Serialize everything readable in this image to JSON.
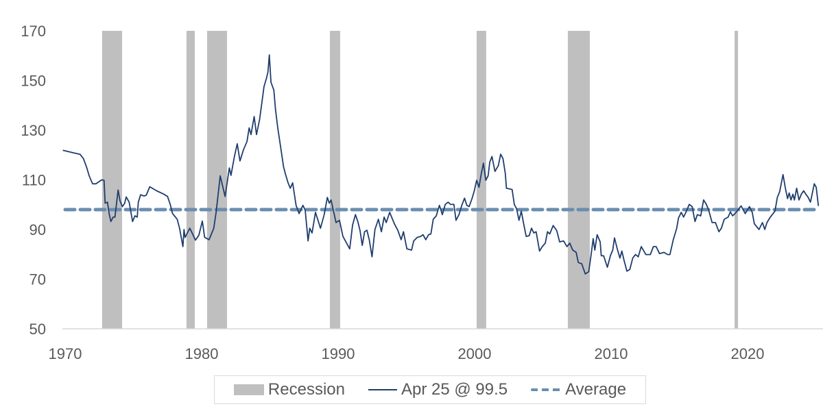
{
  "chart_data": {
    "type": "line",
    "title": "",
    "xlabel": "",
    "ylabel": "",
    "xlim": [
      1969.8,
      2025.3
    ],
    "ylim": [
      50,
      170
    ],
    "x_ticks": [
      "1970",
      "1980",
      "1990",
      "2000",
      "2010",
      "2020"
    ],
    "y_ticks": [
      "50",
      "70",
      "90",
      "110",
      "130",
      "150",
      "170"
    ],
    "grid": false,
    "legend_position": "bottom",
    "colors": {
      "series": "#1f3d6d",
      "average": "#6a8db0",
      "recession": "#bfbfbf",
      "text": "#595959"
    },
    "recessions": [
      [
        1972.71,
        1974.17
      ],
      [
        1978.89,
        1979.5
      ],
      [
        1980.4,
        1981.86
      ],
      [
        1989.4,
        1990.15
      ],
      [
        2000.15,
        2000.85
      ],
      [
        2006.83,
        2008.44
      ],
      [
        2019.05,
        2019.3
      ]
    ],
    "average": 98.0,
    "series": [
      {
        "name": "Apr 25 @ 99.5",
        "points": [
          [
            1969.83,
            121.9
          ],
          [
            1970.67,
            120.8
          ],
          [
            1971.09,
            120.3
          ],
          [
            1971.34,
            118.5
          ],
          [
            1971.59,
            114.8
          ],
          [
            1971.76,
            111.6
          ],
          [
            1972.01,
            108.4
          ],
          [
            1972.26,
            108.4
          ],
          [
            1972.68,
            110
          ],
          [
            1972.85,
            109.8
          ],
          [
            1972.93,
            100.6
          ],
          [
            1973.1,
            101
          ],
          [
            1973.22,
            96.4
          ],
          [
            1973.35,
            93.2
          ],
          [
            1973.52,
            95
          ],
          [
            1973.65,
            95
          ],
          [
            1973.88,
            105.9
          ],
          [
            1974.02,
            101.5
          ],
          [
            1974.19,
            99.2
          ],
          [
            1974.36,
            100.6
          ],
          [
            1974.47,
            103.1
          ],
          [
            1974.69,
            101
          ],
          [
            1974.94,
            93.2
          ],
          [
            1975.11,
            95.5
          ],
          [
            1975.28,
            95
          ],
          [
            1975.36,
            101
          ],
          [
            1975.53,
            104
          ],
          [
            1975.78,
            103.5
          ],
          [
            1975.94,
            103.8
          ],
          [
            1976.2,
            107.2
          ],
          [
            1976.7,
            105.6
          ],
          [
            1977.2,
            104.3
          ],
          [
            1977.5,
            103.3
          ],
          [
            1977.7,
            100.1
          ],
          [
            1977.87,
            96.4
          ],
          [
            1978.21,
            94.1
          ],
          [
            1978.38,
            90.5
          ],
          [
            1978.63,
            83.1
          ],
          [
            1978.71,
            90
          ],
          [
            1978.79,
            86.8
          ],
          [
            1979.13,
            90.5
          ],
          [
            1979.38,
            87.7
          ],
          [
            1979.55,
            85.7
          ],
          [
            1979.8,
            87.7
          ],
          [
            1980.05,
            93.4
          ],
          [
            1980.22,
            86.8
          ],
          [
            1980.55,
            85.9
          ],
          [
            1980.89,
            90.5
          ],
          [
            1981.06,
            96.9
          ],
          [
            1981.36,
            111.6
          ],
          [
            1981.72,
            103.3
          ],
          [
            1982.03,
            114.8
          ],
          [
            1982.15,
            111.8
          ],
          [
            1982.4,
            119.4
          ],
          [
            1982.61,
            124.5
          ],
          [
            1982.81,
            117.6
          ],
          [
            1983.07,
            122.2
          ],
          [
            1983.32,
            125.4
          ],
          [
            1983.48,
            130.9
          ],
          [
            1983.62,
            128.2
          ],
          [
            1983.85,
            135.5
          ],
          [
            1984.02,
            128.2
          ],
          [
            1984.24,
            134.1
          ],
          [
            1984.41,
            141
          ],
          [
            1984.57,
            147.5
          ],
          [
            1984.74,
            150.7
          ],
          [
            1984.86,
            153.4
          ],
          [
            1984.96,
            160.3
          ],
          [
            1985.08,
            149.3
          ],
          [
            1985.29,
            146.1
          ],
          [
            1985.41,
            138.3
          ],
          [
            1985.58,
            130.9
          ],
          [
            1985.83,
            121.7
          ],
          [
            1986.0,
            115.3
          ],
          [
            1986.13,
            112.5
          ],
          [
            1986.33,
            108.8
          ],
          [
            1986.5,
            106.6
          ],
          [
            1986.67,
            108.8
          ],
          [
            1986.92,
            99.7
          ],
          [
            1987.14,
            96.4
          ],
          [
            1987.42,
            99.7
          ],
          [
            1987.59,
            97.8
          ],
          [
            1987.8,
            85.4
          ],
          [
            1987.92,
            90.5
          ],
          [
            1988.09,
            88.6
          ],
          [
            1988.34,
            96.9
          ],
          [
            1988.71,
            90.5
          ],
          [
            1988.98,
            96
          ],
          [
            1989.21,
            102.9
          ],
          [
            1989.35,
            100.6
          ],
          [
            1989.48,
            101.9
          ],
          [
            1989.85,
            92.8
          ],
          [
            1990.1,
            93.7
          ],
          [
            1990.35,
            87.2
          ],
          [
            1990.85,
            82.2
          ],
          [
            1991.06,
            91.8
          ],
          [
            1991.27,
            96
          ],
          [
            1991.44,
            93.2
          ],
          [
            1991.61,
            89.5
          ],
          [
            1991.77,
            83.6
          ],
          [
            1991.94,
            89.1
          ],
          [
            1992.11,
            89.7
          ],
          [
            1992.28,
            85.9
          ],
          [
            1992.48,
            79
          ],
          [
            1992.7,
            90
          ],
          [
            1992.95,
            94.1
          ],
          [
            1993.17,
            89.1
          ],
          [
            1993.37,
            95
          ],
          [
            1993.53,
            92.8
          ],
          [
            1993.78,
            96.9
          ],
          [
            1994.12,
            92.3
          ],
          [
            1994.37,
            89.7
          ],
          [
            1994.62,
            85.9
          ],
          [
            1994.79,
            89.1
          ],
          [
            1995.04,
            82.2
          ],
          [
            1995.38,
            81.7
          ],
          [
            1995.54,
            85.4
          ],
          [
            1995.79,
            86.8
          ],
          [
            1996.05,
            87.2
          ],
          [
            1996.22,
            87.9
          ],
          [
            1996.42,
            85.9
          ],
          [
            1996.63,
            87.9
          ],
          [
            1996.8,
            88.2
          ],
          [
            1996.97,
            94.1
          ],
          [
            1997.19,
            95.5
          ],
          [
            1997.42,
            99.7
          ],
          [
            1997.64,
            96
          ],
          [
            1997.85,
            100.1
          ],
          [
            1998.06,
            101
          ],
          [
            1998.23,
            100.1
          ],
          [
            1998.48,
            100.1
          ],
          [
            1998.64,
            93.7
          ],
          [
            1998.86,
            96
          ],
          [
            1999.06,
            99.7
          ],
          [
            1999.26,
            102.6
          ],
          [
            1999.43,
            99.7
          ],
          [
            1999.6,
            99.2
          ],
          [
            1999.81,
            102.4
          ],
          [
            1999.98,
            105.6
          ],
          [
            2000.15,
            109.8
          ],
          [
            2000.32,
            107
          ],
          [
            2000.49,
            112.5
          ],
          [
            2000.65,
            116.7
          ],
          [
            2000.82,
            109.8
          ],
          [
            2000.99,
            111.6
          ],
          [
            2001.11,
            117.1
          ],
          [
            2001.27,
            119.4
          ],
          [
            2001.49,
            113.4
          ],
          [
            2001.74,
            115.7
          ],
          [
            2001.91,
            120.3
          ],
          [
            2002.08,
            118.5
          ],
          [
            2002.25,
            112.5
          ],
          [
            2002.33,
            106.6
          ],
          [
            2002.75,
            106.1
          ],
          [
            2002.91,
            100.1
          ],
          [
            2003.08,
            98.3
          ],
          [
            2003.25,
            93.7
          ],
          [
            2003.42,
            97.4
          ],
          [
            2003.58,
            92.8
          ],
          [
            2003.78,
            87.2
          ],
          [
            2004.0,
            87.5
          ],
          [
            2004.17,
            90.5
          ],
          [
            2004.34,
            88.6
          ],
          [
            2004.51,
            89.1
          ],
          [
            2004.76,
            81.3
          ],
          [
            2004.96,
            83.1
          ],
          [
            2005.18,
            84.5
          ],
          [
            2005.34,
            89.1
          ],
          [
            2005.51,
            88.2
          ],
          [
            2005.76,
            91.6
          ],
          [
            2006.02,
            89.5
          ],
          [
            2006.23,
            85
          ],
          [
            2006.52,
            85.4
          ],
          [
            2006.77,
            83.1
          ],
          [
            2006.97,
            84.5
          ],
          [
            2007.19,
            81.7
          ],
          [
            2007.44,
            80.8
          ],
          [
            2007.6,
            76.7
          ],
          [
            2007.85,
            76.2
          ],
          [
            2008.11,
            72.1
          ],
          [
            2008.36,
            73
          ],
          [
            2008.53,
            79.4
          ],
          [
            2008.69,
            86.3
          ],
          [
            2008.81,
            81.7
          ],
          [
            2008.98,
            87.9
          ],
          [
            2009.2,
            85
          ],
          [
            2009.28,
            79.4
          ],
          [
            2009.45,
            79.4
          ],
          [
            2009.73,
            74.8
          ],
          [
            2009.95,
            79.4
          ],
          [
            2010.12,
            81.7
          ],
          [
            2010.25,
            86.6
          ],
          [
            2010.45,
            82.2
          ],
          [
            2010.65,
            78.5
          ],
          [
            2010.79,
            81.3
          ],
          [
            2010.95,
            77.6
          ],
          [
            2011.16,
            73.2
          ],
          [
            2011.37,
            73.9
          ],
          [
            2011.59,
            78.5
          ],
          [
            2011.79,
            79.9
          ],
          [
            2011.99,
            79
          ],
          [
            2012.21,
            83.1
          ],
          [
            2012.55,
            79.9
          ],
          [
            2012.88,
            79.9
          ],
          [
            2013.1,
            83.1
          ],
          [
            2013.3,
            83.1
          ],
          [
            2013.55,
            80.3
          ],
          [
            2013.88,
            80.8
          ],
          [
            2014.14,
            79.9
          ],
          [
            2014.31,
            79.9
          ],
          [
            2014.56,
            85.9
          ],
          [
            2014.81,
            90.5
          ],
          [
            2014.94,
            94.6
          ],
          [
            2015.14,
            96.9
          ],
          [
            2015.31,
            95
          ],
          [
            2015.48,
            96.9
          ],
          [
            2015.73,
            100.1
          ],
          [
            2015.94,
            99.2
          ],
          [
            2016.15,
            93.2
          ],
          [
            2016.32,
            96
          ],
          [
            2016.57,
            95.5
          ],
          [
            2016.78,
            101.9
          ],
          [
            2016.98,
            100.1
          ],
          [
            2017.15,
            97.8
          ],
          [
            2017.4,
            92.8
          ],
          [
            2017.65,
            92.8
          ],
          [
            2017.9,
            89.1
          ],
          [
            2018.08,
            90.5
          ],
          [
            2018.29,
            94.1
          ],
          [
            2018.58,
            95
          ],
          [
            2018.74,
            97.1
          ],
          [
            2018.91,
            95.5
          ],
          [
            2019.16,
            96.9
          ],
          [
            2019.53,
            99.5
          ],
          [
            2019.83,
            96.4
          ],
          [
            2020.14,
            99.2
          ],
          [
            2020.34,
            96.9
          ],
          [
            2020.5,
            92.3
          ],
          [
            2020.84,
            90
          ],
          [
            2021.09,
            92.8
          ],
          [
            2021.26,
            90
          ],
          [
            2021.42,
            92.8
          ],
          [
            2021.67,
            95
          ],
          [
            2022.01,
            97.4
          ],
          [
            2022.18,
            102.9
          ],
          [
            2022.35,
            105.2
          ],
          [
            2022.6,
            112.1
          ],
          [
            2022.76,
            107
          ],
          [
            2022.93,
            102.4
          ],
          [
            2023.05,
            104.7
          ],
          [
            2023.18,
            101.9
          ],
          [
            2023.32,
            104.2
          ],
          [
            2023.43,
            101.9
          ],
          [
            2023.6,
            106.6
          ],
          [
            2023.77,
            101.9
          ],
          [
            2023.94,
            104.2
          ],
          [
            2024.11,
            105.6
          ],
          [
            2024.27,
            104.2
          ],
          [
            2024.44,
            102.9
          ],
          [
            2024.61,
            101
          ],
          [
            2024.89,
            108.4
          ],
          [
            2025.03,
            107
          ],
          [
            2025.19,
            99.5
          ]
        ]
      }
    ],
    "legend": {
      "recession": "Recession",
      "series": "Apr 25 @ 99.5",
      "average": "Average"
    }
  }
}
